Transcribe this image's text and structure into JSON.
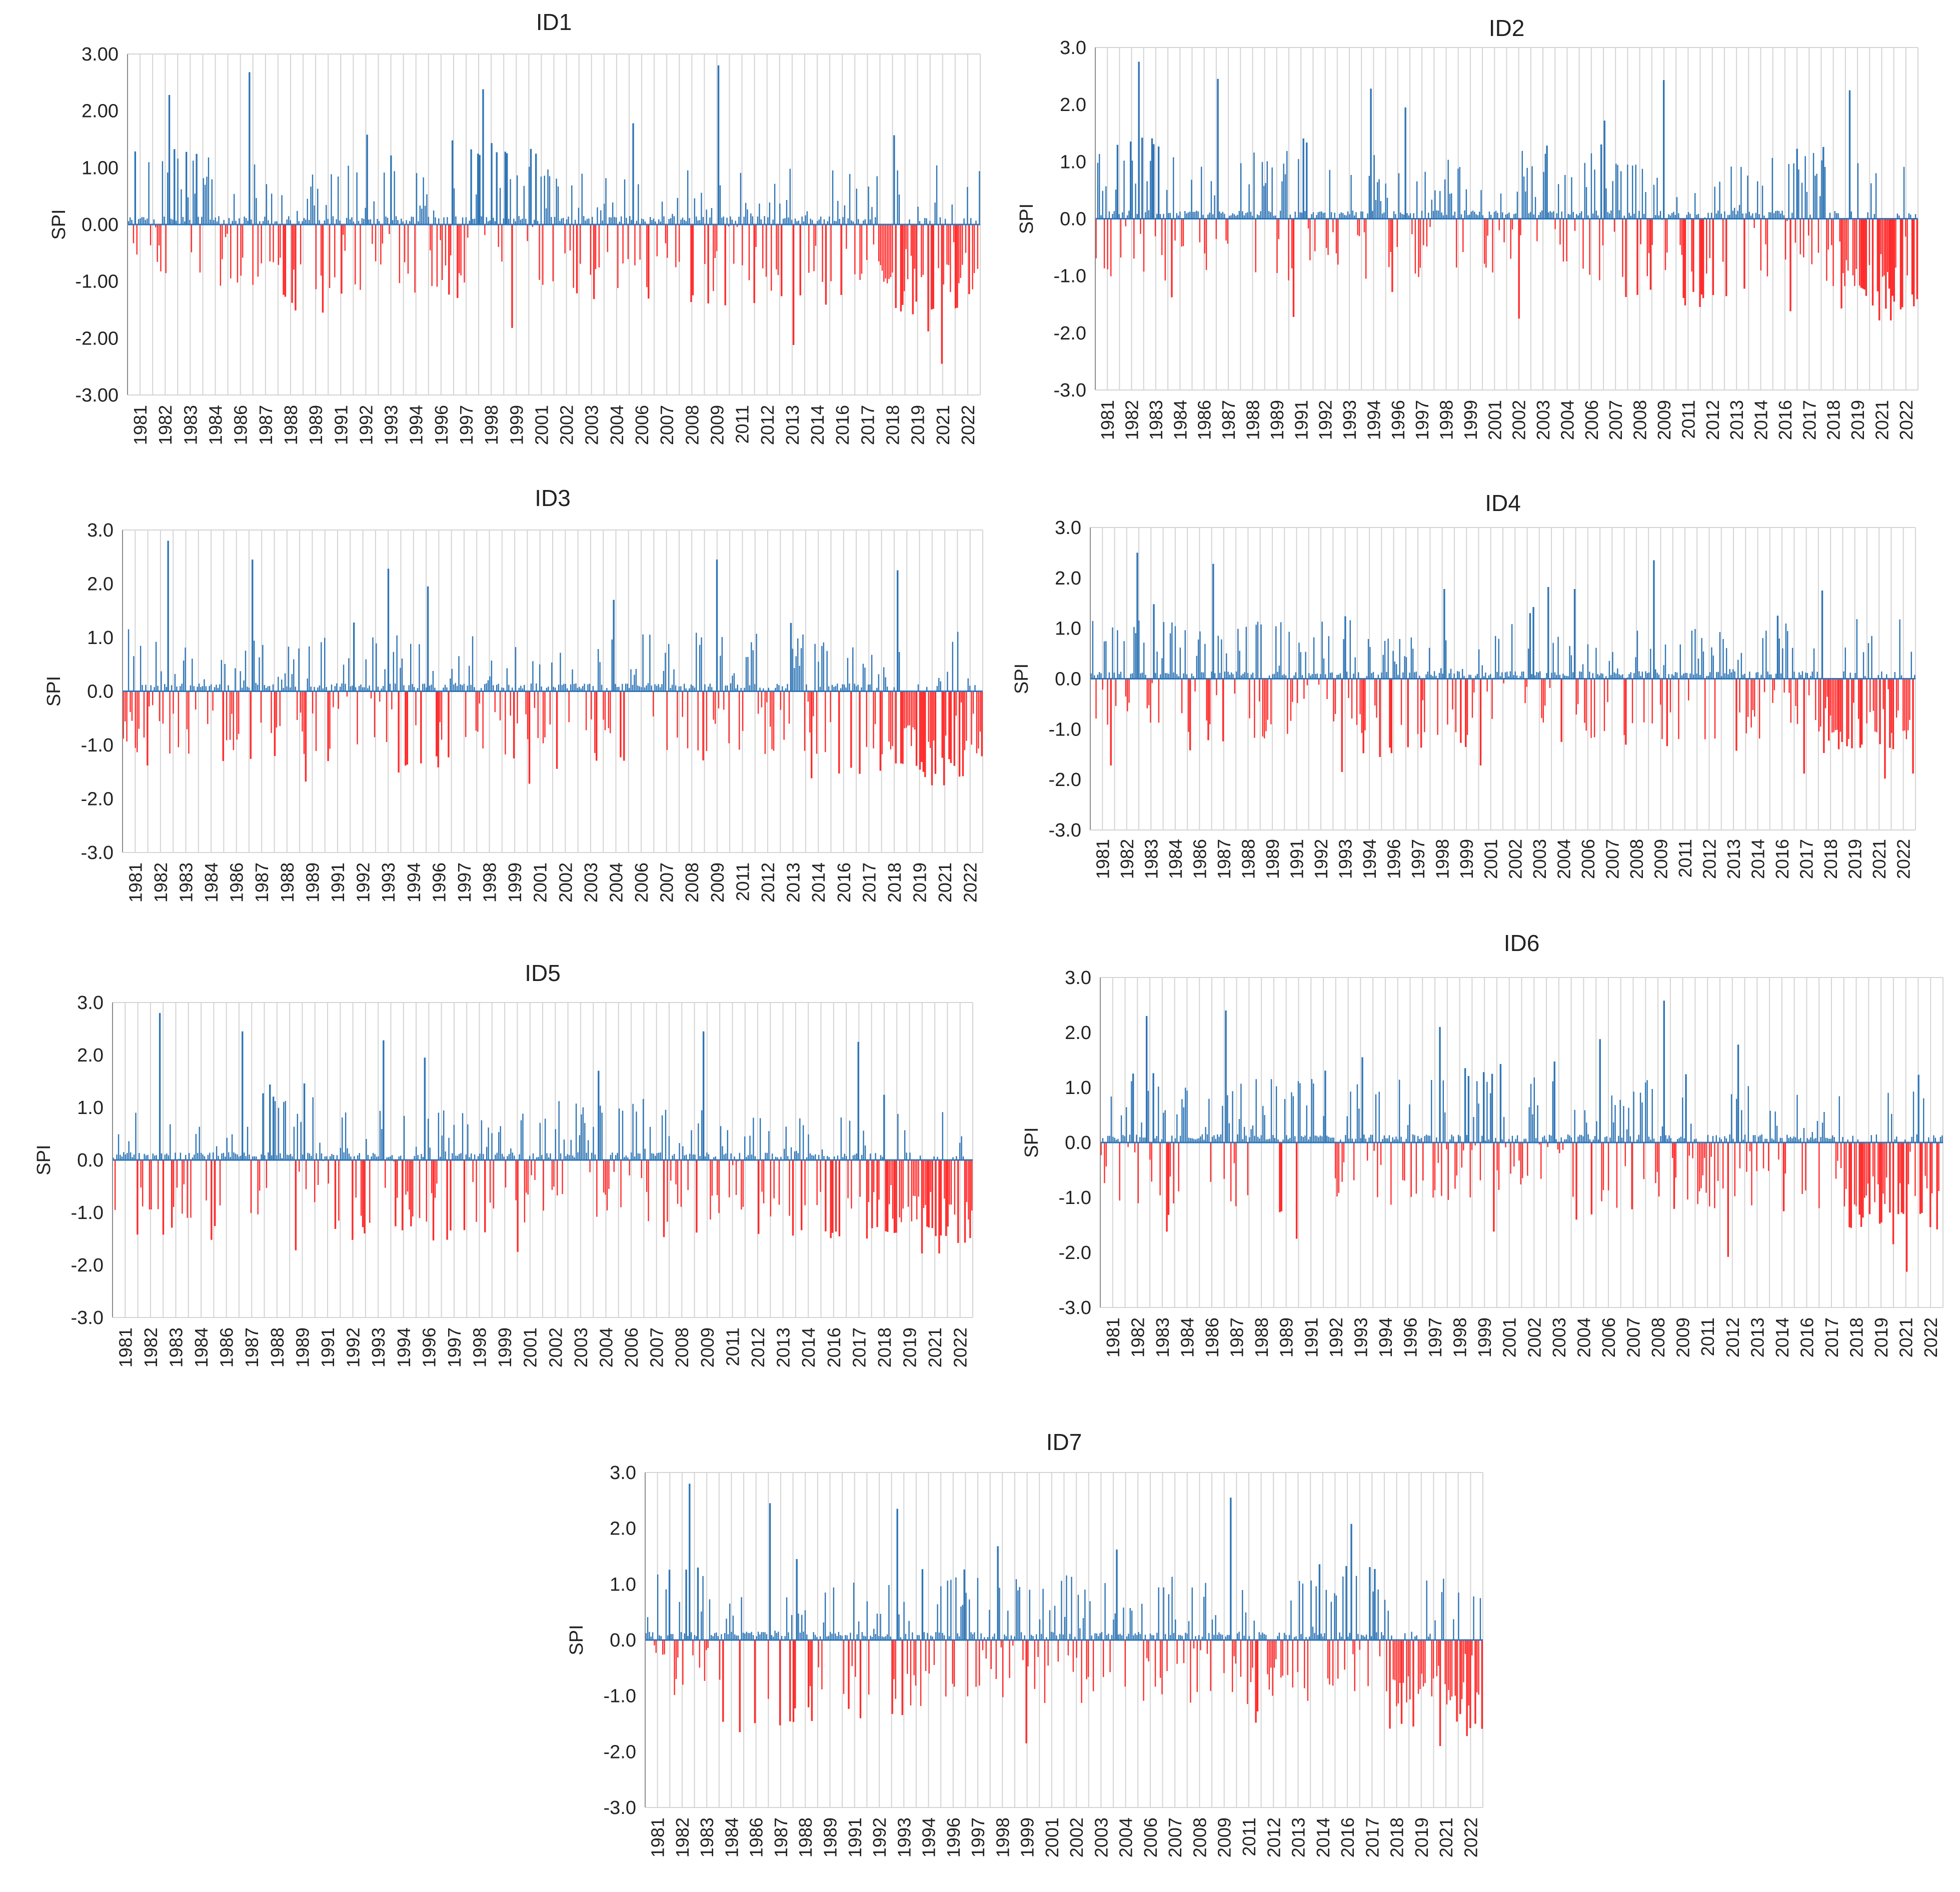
{
  "figure": {
    "description_hidden": false
  },
  "colors": {
    "positive": "#2e75b6",
    "negative": "#ff2b2b",
    "grid": "#d4d4d4",
    "axis": "#8c8c8c",
    "text": "#222222"
  },
  "chart_data": [
    {
      "type": "bar",
      "title": "ID1",
      "ylabel": "SPI",
      "xlabel": "",
      "ylim": [
        -3,
        3
      ],
      "yticks": [
        "3.00",
        "2.00",
        "1.00",
        "0.00",
        "-1.00",
        "-2.00",
        "-3.00"
      ],
      "categories": [
        "1981",
        "1982",
        "1983",
        "1984",
        "1986",
        "1987",
        "1988",
        "1989",
        "1991",
        "1992",
        "1993",
        "1994",
        "1996",
        "1997",
        "1998",
        "1999",
        "2001",
        "2002",
        "2003",
        "2004",
        "2006",
        "2007",
        "2008",
        "2009",
        "2011",
        "2012",
        "2013",
        "2014",
        "2016",
        "2017",
        "2018",
        "2019",
        "2021",
        "2022"
      ],
      "months": 500,
      "notable": [
        {
          "m": 24,
          "v": 2.28
        },
        {
          "m": 71,
          "v": 2.68
        },
        {
          "m": 114,
          "v": -1.55
        },
        {
          "m": 140,
          "v": 1.58
        },
        {
          "m": 190,
          "v": 1.48
        },
        {
          "m": 208,
          "v": 2.38
        },
        {
          "m": 225,
          "v": -1.82
        },
        {
          "m": 296,
          "v": 1.78
        },
        {
          "m": 346,
          "v": 2.8
        },
        {
          "m": 390,
          "v": -2.12
        },
        {
          "m": 449,
          "v": 1.57
        },
        {
          "m": 477,
          "v": -2.45
        },
        {
          "m": 469,
          "v": -1.88
        },
        {
          "m": 64,
          "v": -1.02
        }
      ],
      "seed": 11
    },
    {
      "type": "bar",
      "title": "ID2",
      "ylabel": "SPI",
      "xlabel": "",
      "ylim": [
        -3,
        3
      ],
      "yticks": [
        "3.0",
        "2.0",
        "1.0",
        "0.0",
        "-1.0",
        "-2.0",
        "-3.0"
      ],
      "categories": [
        "1981",
        "1982",
        "1983",
        "1984",
        "1986",
        "1987",
        "1988",
        "1989",
        "1991",
        "1992",
        "1993",
        "1994",
        "1996",
        "1997",
        "1998",
        "1999",
        "2001",
        "2002",
        "2003",
        "2004",
        "2006",
        "2007",
        "2008",
        "2009",
        "2011",
        "2012",
        "2013",
        "2014",
        "2016",
        "2017",
        "2018",
        "2019",
        "2021",
        "2022"
      ],
      "months": 500,
      "notable": [
        {
          "m": 26,
          "v": 2.75
        },
        {
          "m": 74,
          "v": 2.45
        },
        {
          "m": 120,
          "v": -1.72
        },
        {
          "m": 167,
          "v": 2.28
        },
        {
          "m": 188,
          "v": 1.95
        },
        {
          "m": 257,
          "v": -1.75
        },
        {
          "m": 309,
          "v": 1.72
        },
        {
          "m": 345,
          "v": 2.43
        },
        {
          "m": 422,
          "v": -1.62
        },
        {
          "m": 458,
          "v": 2.25
        },
        {
          "m": 476,
          "v": -1.78
        },
        {
          "m": 483,
          "v": -1.78
        },
        {
          "m": 28,
          "v": 1.42
        },
        {
          "m": 490,
          "v": -1.55
        }
      ],
      "seed": 23
    },
    {
      "type": "bar",
      "title": "ID3",
      "ylabel": "SPI",
      "xlabel": "",
      "ylim": [
        -3,
        3
      ],
      "yticks": [
        "3.0",
        "2.0",
        "1.0",
        "0.0",
        "-1.0",
        "-2.0",
        "-3.0"
      ],
      "categories": [
        "1981",
        "1982",
        "1983",
        "1984",
        "1986",
        "1987",
        "1988",
        "1989",
        "1991",
        "1992",
        "1993",
        "1994",
        "1996",
        "1997",
        "1998",
        "1999",
        "2001",
        "2002",
        "2003",
        "2004",
        "2006",
        "2007",
        "2008",
        "2009",
        "2011",
        "2012",
        "2013",
        "2014",
        "2016",
        "2017",
        "2018",
        "2019",
        "2021",
        "2022"
      ],
      "months": 500,
      "notable": [
        {
          "m": 26,
          "v": 2.8
        },
        {
          "m": 75,
          "v": 2.45
        },
        {
          "m": 106,
          "v": -1.68
        },
        {
          "m": 154,
          "v": 2.28
        },
        {
          "m": 177,
          "v": 1.95
        },
        {
          "m": 236,
          "v": -1.72
        },
        {
          "m": 285,
          "v": 1.7
        },
        {
          "m": 345,
          "v": 2.45
        },
        {
          "m": 400,
          "v": -1.62
        },
        {
          "m": 450,
          "v": 2.25
        },
        {
          "m": 470,
          "v": -1.75
        },
        {
          "m": 477,
          "v": -1.75
        },
        {
          "m": 488,
          "v": -1.58
        },
        {
          "m": 14,
          "v": -1.38
        }
      ],
      "seed": 37
    },
    {
      "type": "bar",
      "title": "ID4",
      "ylabel": "SPI",
      "xlabel": "",
      "ylim": [
        -3,
        3
      ],
      "yticks": [
        "3.0",
        "2.0",
        "1.0",
        "0.0",
        "-1.0",
        "-2.0",
        "-3.0"
      ],
      "categories": [
        "1981",
        "1982",
        "1983",
        "1984",
        "1986",
        "1987",
        "1988",
        "1989",
        "1991",
        "1992",
        "1993",
        "1994",
        "1996",
        "1997",
        "1998",
        "1999",
        "2001",
        "2002",
        "2003",
        "2004",
        "2006",
        "2007",
        "2008",
        "2009",
        "2011",
        "2012",
        "2013",
        "2014",
        "2016",
        "2017",
        "2018",
        "2019",
        "2021",
        "2022"
      ],
      "months": 500,
      "notable": [
        {
          "m": 28,
          "v": 2.5
        },
        {
          "m": 74,
          "v": 2.28
        },
        {
          "m": 152,
          "v": -1.85
        },
        {
          "m": 214,
          "v": 1.78
        },
        {
          "m": 236,
          "v": -1.72
        },
        {
          "m": 277,
          "v": 1.82
        },
        {
          "m": 293,
          "v": 1.78
        },
        {
          "m": 341,
          "v": 2.35
        },
        {
          "m": 432,
          "v": -1.88
        },
        {
          "m": 443,
          "v": 1.75
        },
        {
          "m": 481,
          "v": -1.98
        },
        {
          "m": 498,
          "v": -1.88
        },
        {
          "m": 12,
          "v": -1.72
        },
        {
          "m": 60,
          "v": -1.42
        }
      ],
      "seed": 41
    },
    {
      "type": "bar",
      "title": "ID5",
      "ylabel": "SPI",
      "xlabel": "",
      "ylim": [
        -3,
        3
      ],
      "yticks": [
        "3.0",
        "2.0",
        "1.0",
        "0.0",
        "-1.0",
        "-2.0",
        "-3.0"
      ],
      "categories": [
        "1981",
        "1982",
        "1983",
        "1984",
        "1986",
        "1987",
        "1988",
        "1989",
        "1991",
        "1992",
        "1993",
        "1994",
        "1996",
        "1997",
        "1998",
        "1999",
        "2001",
        "2002",
        "2003",
        "2004",
        "2006",
        "2007",
        "2008",
        "2009",
        "2011",
        "2012",
        "2013",
        "2014",
        "2016",
        "2017",
        "2018",
        "2019",
        "2021",
        "2022"
      ],
      "months": 500,
      "notable": [
        {
          "m": 27,
          "v": 2.8
        },
        {
          "m": 75,
          "v": 2.45
        },
        {
          "m": 106,
          "v": -1.72
        },
        {
          "m": 157,
          "v": 2.28
        },
        {
          "m": 181,
          "v": 1.95
        },
        {
          "m": 235,
          "v": -1.75
        },
        {
          "m": 282,
          "v": 1.7
        },
        {
          "m": 343,
          "v": 2.45
        },
        {
          "m": 433,
          "v": 2.25
        },
        {
          "m": 470,
          "v": -1.78
        },
        {
          "m": 480,
          "v": -1.78
        },
        {
          "m": 491,
          "v": -1.58
        },
        {
          "m": 14,
          "v": -1.42
        },
        {
          "m": 57,
          "v": -1.52
        }
      ],
      "seed": 53
    },
    {
      "type": "bar",
      "title": "ID6",
      "ylabel": "SPI",
      "xlabel": "",
      "ylim": [
        -3,
        3
      ],
      "yticks": [
        "3.0",
        "2.0",
        "1.0",
        "0.0",
        "-1.0",
        "-2.0",
        "-3.0"
      ],
      "categories": [
        "1981",
        "1982",
        "1983",
        "1984",
        "1986",
        "1987",
        "1988",
        "1989",
        "1991",
        "1992",
        "1993",
        "1994",
        "1996",
        "1997",
        "1998",
        "1999",
        "2001",
        "2002",
        "2003",
        "2004",
        "2006",
        "2007",
        "2008",
        "2009",
        "2011",
        "2012",
        "2013",
        "2014",
        "2016",
        "2017",
        "2018",
        "2019",
        "2021",
        "2022"
      ],
      "months": 500,
      "notable": [
        {
          "m": 27,
          "v": 2.3
        },
        {
          "m": 74,
          "v": 2.4
        },
        {
          "m": 116,
          "v": -1.75
        },
        {
          "m": 201,
          "v": 2.1
        },
        {
          "m": 233,
          "v": -1.62
        },
        {
          "m": 296,
          "v": 1.88
        },
        {
          "m": 334,
          "v": 2.58
        },
        {
          "m": 372,
          "v": -2.08
        },
        {
          "m": 378,
          "v": 1.78
        },
        {
          "m": 478,
          "v": -2.35
        },
        {
          "m": 470,
          "v": -1.85
        },
        {
          "m": 496,
          "v": -1.58
        },
        {
          "m": 39,
          "v": -1.62
        },
        {
          "m": 155,
          "v": 1.55
        }
      ],
      "seed": 67
    },
    {
      "type": "bar",
      "title": "ID7",
      "ylabel": "SPI",
      "xlabel": "",
      "ylim": [
        -3,
        3
      ],
      "yticks": [
        "3.0",
        "2.0",
        "1.0",
        "0.0",
        "-1.0",
        "-2.0",
        "-3.0"
      ],
      "categories": [
        "1981",
        "1982",
        "1983",
        "1984",
        "1986",
        "1987",
        "1988",
        "1989",
        "1991",
        "1992",
        "1993",
        "1994",
        "1996",
        "1997",
        "1998",
        "1999",
        "2001",
        "2002",
        "2003",
        "2004",
        "2006",
        "2007",
        "2008",
        "2009",
        "2011",
        "2012",
        "2013",
        "2014",
        "2016",
        "2017",
        "2018",
        "2019",
        "2021",
        "2022"
      ],
      "months": 500,
      "notable": [
        {
          "m": 26,
          "v": 2.8
        },
        {
          "m": 74,
          "v": 2.45
        },
        {
          "m": 150,
          "v": 2.35
        },
        {
          "m": 210,
          "v": 1.68
        },
        {
          "m": 227,
          "v": -1.85
        },
        {
          "m": 281,
          "v": 1.62
        },
        {
          "m": 349,
          "v": 2.55
        },
        {
          "m": 421,
          "v": 2.08
        },
        {
          "m": 474,
          "v": -1.9
        },
        {
          "m": 490,
          "v": -1.72
        },
        {
          "m": 56,
          "v": -1.65
        },
        {
          "m": 90,
          "v": 1.45
        },
        {
          "m": 364,
          "v": -1.48
        },
        {
          "m": 498,
          "v": 0.75
        }
      ],
      "seed": 79
    }
  ]
}
